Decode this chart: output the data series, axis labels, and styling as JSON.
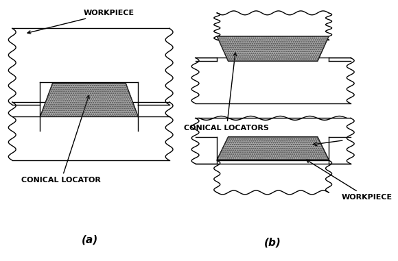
{
  "title_a": "(a)",
  "title_b": "(b)",
  "label_workpiece_a": "WORKPIECE",
  "label_conical_locator": "CONICAL LOCATOR",
  "label_conical_locators": "CONICAL LOCATORS",
  "label_workpiece_b": "WORKPIECE",
  "bg_color": "#ffffff",
  "line_color": "#000000",
  "cone_fill": "#aaaaaa",
  "fig_width": 5.8,
  "fig_height": 3.81,
  "dpi": 100
}
